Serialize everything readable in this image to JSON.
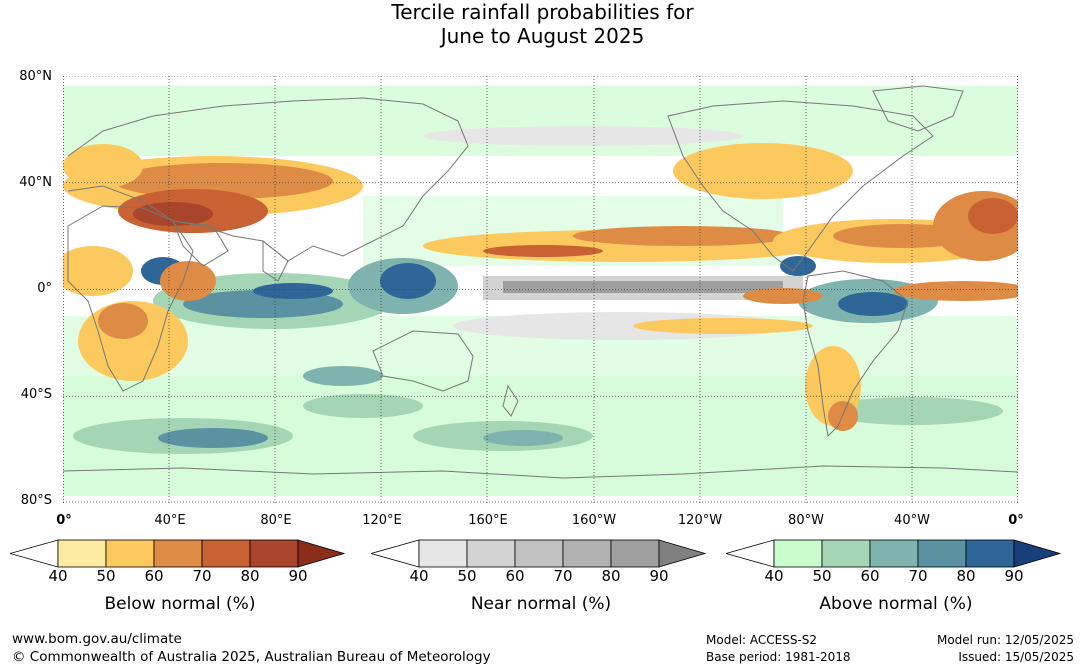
{
  "title": {
    "line1": "Tercile rainfall probabilities for",
    "line2": "June to August 2025"
  },
  "map": {
    "lat_labels": [
      "80°N",
      "40°N",
      "0°",
      "40°S",
      "80°S"
    ],
    "lon_labels": [
      "0°",
      "40°E",
      "80°E",
      "120°E",
      "160°E",
      "160°W",
      "120°W",
      "80°W",
      "40°W",
      "0°"
    ]
  },
  "legends": [
    {
      "title": "Below normal (%)",
      "ticks": [
        "40",
        "50",
        "60",
        "70",
        "80",
        "90"
      ],
      "colors": [
        "#ffffff",
        "#fdeba4",
        "#fcc95f",
        "#de8c45",
        "#c96232",
        "#a8452a",
        "#8a2e1b"
      ]
    },
    {
      "title": "Near normal (%)",
      "ticks": [
        "40",
        "50",
        "60",
        "70",
        "80",
        "90"
      ],
      "colors": [
        "#ffffff",
        "#e6e6e6",
        "#d3d3d3",
        "#c2c2c2",
        "#b1b1b1",
        "#9f9f9f",
        "#808080"
      ]
    },
    {
      "title": "Above normal (%)",
      "ticks": [
        "40",
        "50",
        "60",
        "70",
        "80",
        "90"
      ],
      "colors": [
        "#ffffff",
        "#c9fbcd",
        "#a4d6b6",
        "#7fb3ad",
        "#5a92a2",
        "#2e6697",
        "#173f7a"
      ]
    }
  ],
  "footer": {
    "website": "www.bom.gov.au/climate",
    "copyright": "© Commonwealth of Australia 2025, Australian Bureau of Meteorology",
    "model": "Model: ACCESS-S2",
    "base_period": "Base period: 1981-2018",
    "model_run": "Model run: 12/05/2025",
    "issued": "Issued: 15/05/2025"
  }
}
